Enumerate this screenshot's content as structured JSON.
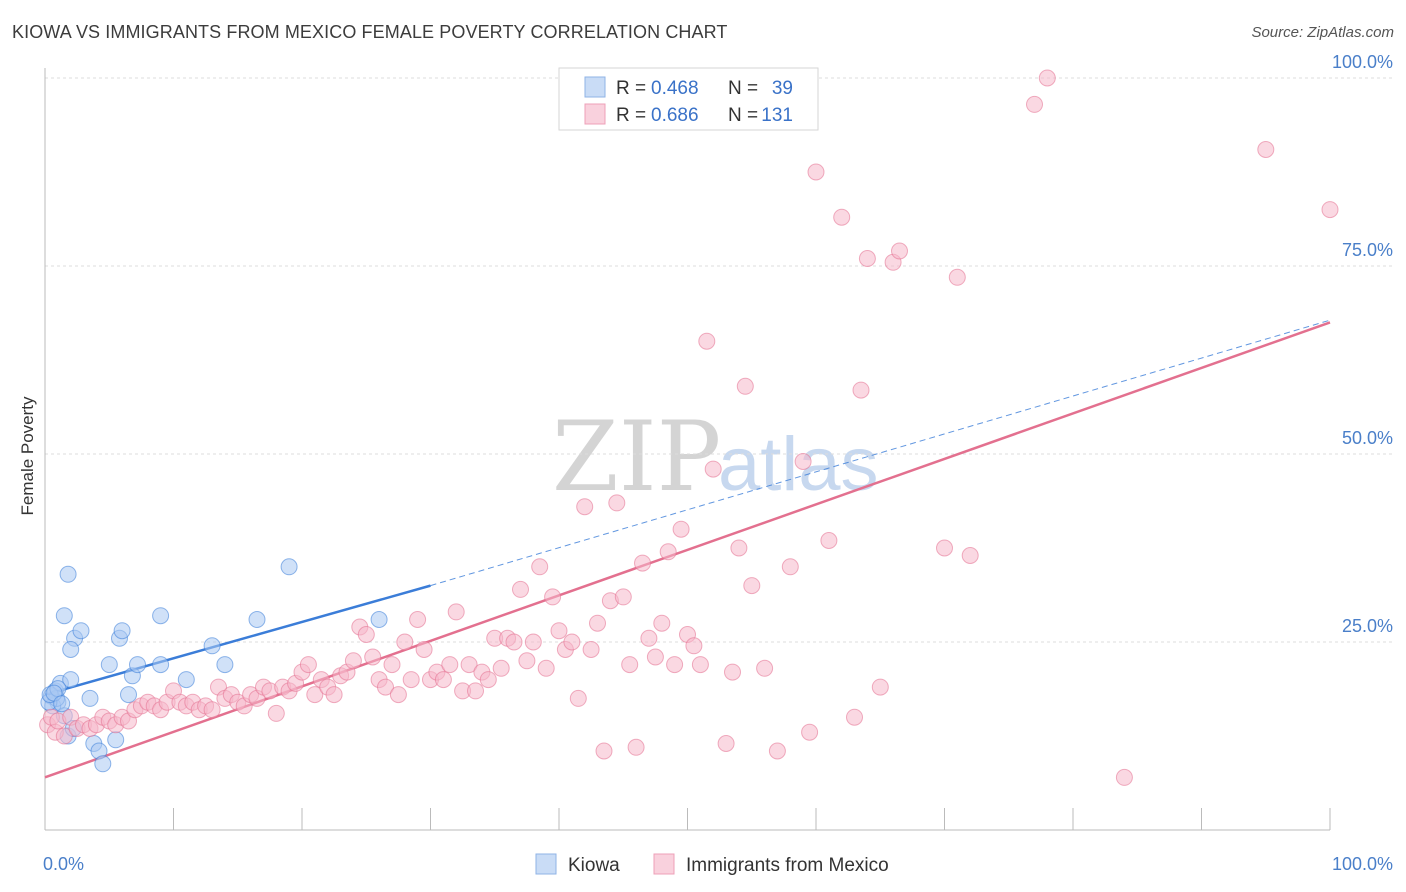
{
  "header": {
    "title": "KIOWA VS IMMIGRANTS FROM MEXICO FEMALE POVERTY CORRELATION CHART",
    "source": "Source: ZipAtlas.com"
  },
  "watermark": {
    "zip": "ZIP",
    "atlas": "atlas"
  },
  "legend": {
    "rows": [
      {
        "r_label": "R =",
        "r_value": "0.468",
        "n_label": "N =",
        "n_value": "39",
        "color": "#a9c8f2"
      },
      {
        "r_label": "R =",
        "r_value": "0.686",
        "n_label": "N =",
        "n_value": "131",
        "color": "#f5b8ca"
      }
    ]
  },
  "bottom_legend": [
    {
      "label": "Kiowa",
      "color": "#a9c8f2"
    },
    {
      "label": "Immigrants from Mexico",
      "color": "#f5b8ca"
    }
  ],
  "chart_data": {
    "type": "scatter",
    "ylabel": "Female Poverty",
    "xlabel": "",
    "x_tick_labels": [
      "0.0%",
      "100.0%"
    ],
    "y_tick_labels": [
      "25.0%",
      "50.0%",
      "75.0%",
      "100.0%"
    ],
    "y_ticks": [
      25,
      50,
      75,
      100
    ],
    "xlim": [
      0,
      100
    ],
    "ylim": [
      0,
      102
    ],
    "grid": "horizontal dashed",
    "legend_position": "top-center",
    "colors": {
      "kiowa": "#3b7dd8",
      "mexico": "#e3708f"
    },
    "series": [
      {
        "name": "Kiowa",
        "color": "#3b7dd8",
        "fill": "#a9c8f2",
        "trend": {
          "x0": 0,
          "y0": 18.0,
          "x1": 30,
          "y1": 32.5,
          "dashed_to_x": 100,
          "dashed_to_y": 67.8
        },
        "points": [
          [
            0.5,
            17.8
          ],
          [
            0.8,
            18.5
          ],
          [
            1.0,
            17.0
          ],
          [
            1.2,
            19.5
          ],
          [
            0.6,
            16.5
          ],
          [
            0.9,
            17.5
          ],
          [
            1.5,
            15.2
          ],
          [
            1.8,
            12.5
          ],
          [
            2.2,
            13.5
          ],
          [
            2.0,
            20.0
          ],
          [
            2.3,
            25.5
          ],
          [
            2.8,
            26.5
          ],
          [
            3.5,
            17.5
          ],
          [
            3.8,
            11.5
          ],
          [
            4.2,
            10.5
          ],
          [
            4.5,
            8.8
          ],
          [
            5.0,
            22.0
          ],
          [
            5.5,
            12.0
          ],
          [
            5.8,
            25.5
          ],
          [
            6.0,
            26.5
          ],
          [
            6.5,
            18.0
          ],
          [
            6.8,
            20.5
          ],
          [
            7.2,
            22.0
          ],
          [
            9.0,
            22.0
          ],
          [
            9.0,
            28.5
          ],
          [
            11.0,
            20.0
          ],
          [
            13.0,
            24.5
          ],
          [
            14.0,
            22.0
          ],
          [
            16.5,
            28.0
          ],
          [
            19.0,
            35.0
          ],
          [
            26.0,
            28.0
          ],
          [
            1.8,
            34.0
          ],
          [
            1.5,
            28.5
          ],
          [
            0.3,
            17.0
          ],
          [
            0.4,
            18.0
          ],
          [
            1.0,
            18.8
          ],
          [
            2.0,
            24.0
          ],
          [
            0.7,
            18.2
          ],
          [
            1.3,
            16.8
          ]
        ]
      },
      {
        "name": "Immigrants from Mexico",
        "color": "#e3708f",
        "fill": "#f5b8ca",
        "trend": {
          "x0": 0,
          "y0": 7.0,
          "x1": 100,
          "y1": 67.5
        },
        "points": [
          [
            0.2,
            14.0
          ],
          [
            0.5,
            15.0
          ],
          [
            0.8,
            13.0
          ],
          [
            1.0,
            14.5
          ],
          [
            1.5,
            12.5
          ],
          [
            2.0,
            15.0
          ],
          [
            2.5,
            13.5
          ],
          [
            3.0,
            14.0
          ],
          [
            3.5,
            13.5
          ],
          [
            4.0,
            14.0
          ],
          [
            4.5,
            15.0
          ],
          [
            5.0,
            14.5
          ],
          [
            5.5,
            14.0
          ],
          [
            6.0,
            15.0
          ],
          [
            6.5,
            14.5
          ],
          [
            7.0,
            16.0
          ],
          [
            7.5,
            16.5
          ],
          [
            8.0,
            17.0
          ],
          [
            8.5,
            16.5
          ],
          [
            9.0,
            16.0
          ],
          [
            9.5,
            17.0
          ],
          [
            10.0,
            18.5
          ],
          [
            10.5,
            17.0
          ],
          [
            11.0,
            16.5
          ],
          [
            11.5,
            17.0
          ],
          [
            12.0,
            16.0
          ],
          [
            12.5,
            16.5
          ],
          [
            13.0,
            16.0
          ],
          [
            13.5,
            19.0
          ],
          [
            14.0,
            17.5
          ],
          [
            14.5,
            18.0
          ],
          [
            15.0,
            17.0
          ],
          [
            15.5,
            16.5
          ],
          [
            16.0,
            18.0
          ],
          [
            16.5,
            17.5
          ],
          [
            17.0,
            19.0
          ],
          [
            17.5,
            18.5
          ],
          [
            18.0,
            15.5
          ],
          [
            18.5,
            19.0
          ],
          [
            19.0,
            18.5
          ],
          [
            19.5,
            19.5
          ],
          [
            20.0,
            21.0
          ],
          [
            20.5,
            22.0
          ],
          [
            21.0,
            18.0
          ],
          [
            21.5,
            20.0
          ],
          [
            22.0,
            19.0
          ],
          [
            22.5,
            18.0
          ],
          [
            23.0,
            20.5
          ],
          [
            23.5,
            21.0
          ],
          [
            24.0,
            22.5
          ],
          [
            24.5,
            27.0
          ],
          [
            25.0,
            26.0
          ],
          [
            25.5,
            23.0
          ],
          [
            26.0,
            20.0
          ],
          [
            26.5,
            19.0
          ],
          [
            27.0,
            22.0
          ],
          [
            27.5,
            18.0
          ],
          [
            28.0,
            25.0
          ],
          [
            28.5,
            20.0
          ],
          [
            29.0,
            28.0
          ],
          [
            29.5,
            24.0
          ],
          [
            30.0,
            20.0
          ],
          [
            30.5,
            21.0
          ],
          [
            31.0,
            20.0
          ],
          [
            31.5,
            22.0
          ],
          [
            32.0,
            29.0
          ],
          [
            32.5,
            18.5
          ],
          [
            33.0,
            22.0
          ],
          [
            33.5,
            18.5
          ],
          [
            34.0,
            21.0
          ],
          [
            34.5,
            20.0
          ],
          [
            35.0,
            25.5
          ],
          [
            35.5,
            21.5
          ],
          [
            36.0,
            25.5
          ],
          [
            36.5,
            25.0
          ],
          [
            37.0,
            32.0
          ],
          [
            37.5,
            22.5
          ],
          [
            38.0,
            25.0
          ],
          [
            38.5,
            35.0
          ],
          [
            39.0,
            21.5
          ],
          [
            39.5,
            31.0
          ],
          [
            40.0,
            26.5
          ],
          [
            40.5,
            24.0
          ],
          [
            41.0,
            25.0
          ],
          [
            41.5,
            17.5
          ],
          [
            42.0,
            43.0
          ],
          [
            42.5,
            24.0
          ],
          [
            43.0,
            27.5
          ],
          [
            43.5,
            10.5
          ],
          [
            44.0,
            30.5
          ],
          [
            44.5,
            43.5
          ],
          [
            45.0,
            31.0
          ],
          [
            45.5,
            22.0
          ],
          [
            46.0,
            11.0
          ],
          [
            46.5,
            35.5
          ],
          [
            47.0,
            25.5
          ],
          [
            47.5,
            23.0
          ],
          [
            48.0,
            27.5
          ],
          [
            48.5,
            37.0
          ],
          [
            49.0,
            22.0
          ],
          [
            49.5,
            40.0
          ],
          [
            50.0,
            26.0
          ],
          [
            50.5,
            24.5
          ],
          [
            51.0,
            22.0
          ],
          [
            51.5,
            65.0
          ],
          [
            52.0,
            48.0
          ],
          [
            53.0,
            11.5
          ],
          [
            53.5,
            21.0
          ],
          [
            54.0,
            37.5
          ],
          [
            54.5,
            59.0
          ],
          [
            55.0,
            32.5
          ],
          [
            56.0,
            21.5
          ],
          [
            57.0,
            10.5
          ],
          [
            58.0,
            35.0
          ],
          [
            59.0,
            49.0
          ],
          [
            59.5,
            13.0
          ],
          [
            60.0,
            87.5
          ],
          [
            61.0,
            38.5
          ],
          [
            62.0,
            81.5
          ],
          [
            63.0,
            15.0
          ],
          [
            63.5,
            58.5
          ],
          [
            64.0,
            76.0
          ],
          [
            65.0,
            19.0
          ],
          [
            66.0,
            75.5
          ],
          [
            66.5,
            77.0
          ],
          [
            70.0,
            37.5
          ],
          [
            71.0,
            73.5
          ],
          [
            72.0,
            36.5
          ],
          [
            77.0,
            96.5
          ],
          [
            78.0,
            100.0
          ],
          [
            84.0,
            7.0
          ],
          [
            95.0,
            90.5
          ],
          [
            100.0,
            82.5
          ]
        ]
      }
    ]
  }
}
